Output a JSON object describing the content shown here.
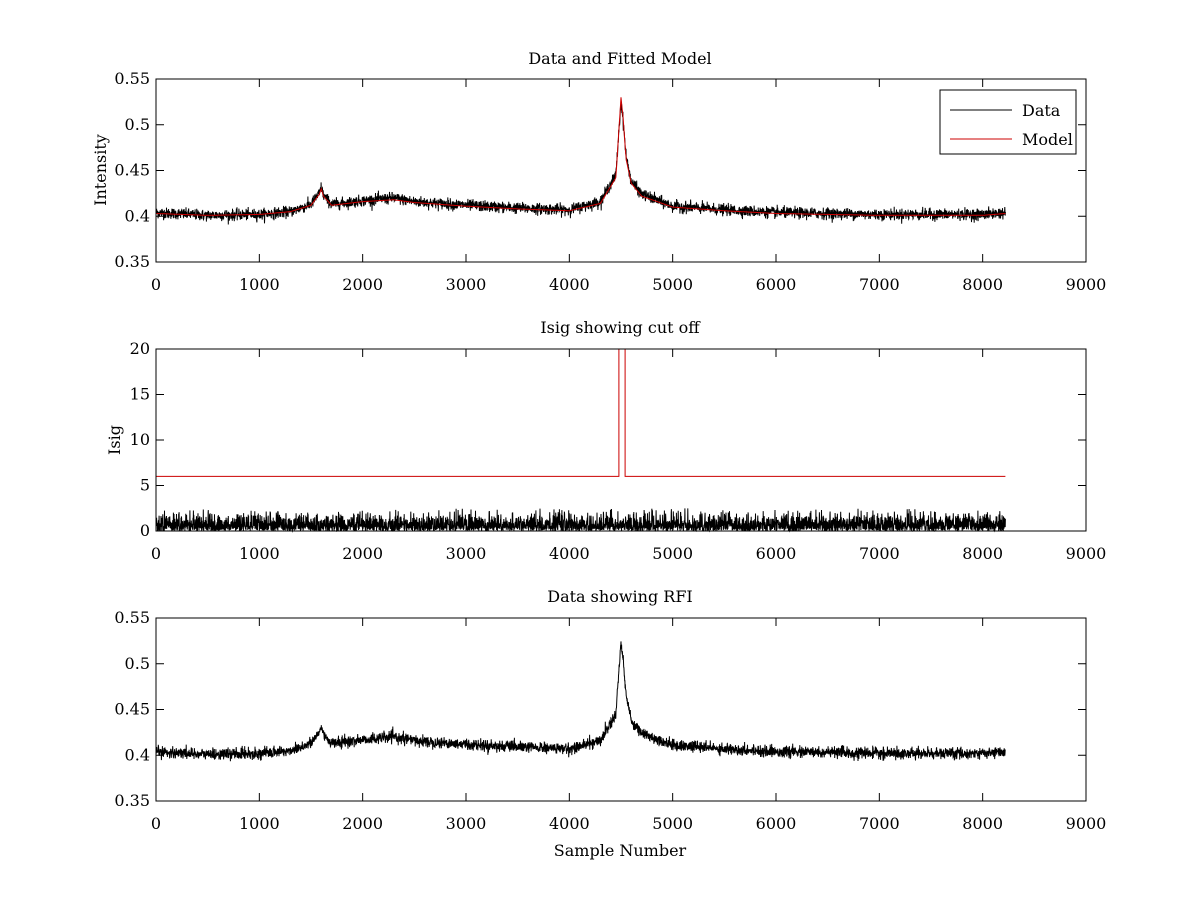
{
  "chart_data": [
    {
      "type": "line",
      "title": "Data and Fitted Model",
      "xlabel": "",
      "ylabel": "Intensity",
      "xlim": [
        0,
        9000
      ],
      "ylim": [
        0.35,
        0.55
      ],
      "xticks": [
        0,
        1000,
        2000,
        3000,
        4000,
        5000,
        6000,
        7000,
        8000,
        9000
      ],
      "yticks": [
        0.35,
        0.4,
        0.45,
        0.5,
        0.55
      ],
      "xtick_labels": [
        "0",
        "1000",
        "2000",
        "3000",
        "4000",
        "5000",
        "6000",
        "7000",
        "8000",
        "9000"
      ],
      "ytick_labels": [
        "0.35",
        "0.4",
        "0.45",
        "0.5",
        "0.55"
      ],
      "grid": false,
      "legend": {
        "placement": "top-right",
        "entries": [
          "Data",
          "Model"
        ]
      },
      "series": [
        {
          "name": "Data",
          "color": "#000000",
          "noise_amplitude": 0.006,
          "x": [
            0,
            500,
            1000,
            1300,
            1500,
            1580,
            1600,
            1620,
            1700,
            2000,
            2300,
            2500,
            3000,
            3500,
            4000,
            4300,
            4450,
            4500,
            4520,
            4550,
            4600,
            4700,
            5000,
            5500,
            6000,
            7000,
            8000,
            8220
          ],
          "values": [
            0.404,
            0.401,
            0.402,
            0.405,
            0.413,
            0.425,
            0.432,
            0.423,
            0.413,
            0.417,
            0.42,
            0.416,
            0.412,
            0.409,
            0.407,
            0.416,
            0.445,
            0.525,
            0.505,
            0.465,
            0.438,
            0.424,
            0.411,
            0.407,
            0.404,
            0.402,
            0.402,
            0.404
          ]
        },
        {
          "name": "Model",
          "color": "#cc0000",
          "x": [
            0,
            500,
            1000,
            1300,
            1500,
            1580,
            1600,
            1620,
            1700,
            2000,
            2300,
            2500,
            3000,
            3500,
            4000,
            4300,
            4450,
            4500,
            4520,
            4550,
            4600,
            4700,
            5000,
            5500,
            6000,
            7000,
            8000,
            8220
          ],
          "values": [
            0.403,
            0.401,
            0.402,
            0.405,
            0.412,
            0.424,
            0.43,
            0.422,
            0.412,
            0.416,
            0.418,
            0.415,
            0.411,
            0.408,
            0.406,
            0.414,
            0.442,
            0.53,
            0.508,
            0.462,
            0.436,
            0.422,
            0.41,
            0.406,
            0.403,
            0.401,
            0.401,
            0.403
          ]
        }
      ]
    },
    {
      "type": "line",
      "title": "Isig showing cut off",
      "xlabel": "",
      "ylabel": "Isig",
      "xlim": [
        0,
        9000
      ],
      "ylim": [
        0,
        20
      ],
      "xticks": [
        0,
        1000,
        2000,
        3000,
        4000,
        5000,
        6000,
        7000,
        8000,
        9000
      ],
      "yticks": [
        0,
        5,
        10,
        15,
        20
      ],
      "xtick_labels": [
        "0",
        "1000",
        "2000",
        "3000",
        "4000",
        "5000",
        "6000",
        "7000",
        "8000",
        "9000"
      ],
      "ytick_labels": [
        "0",
        "5",
        "10",
        "15",
        "20"
      ],
      "grid": false,
      "series": [
        {
          "name": "",
          "color": "#000000",
          "x_range": [
            0,
            8220
          ],
          "noise_max": 2.5
        },
        {
          "name": "",
          "color": "#cc0000",
          "x": [
            0,
            4480,
            4480,
            4500,
            4500,
            4540,
            4540,
            8220
          ],
          "values": [
            6,
            6,
            20,
            20,
            20,
            20,
            6,
            6
          ]
        }
      ]
    },
    {
      "type": "line",
      "title": "Data showing RFI",
      "xlabel": "Sample Number",
      "ylabel": "",
      "xlim": [
        0,
        9000
      ],
      "ylim": [
        0.35,
        0.55
      ],
      "xticks": [
        0,
        1000,
        2000,
        3000,
        4000,
        5000,
        6000,
        7000,
        8000,
        9000
      ],
      "yticks": [
        0.35,
        0.4,
        0.45,
        0.5,
        0.55
      ],
      "xtick_labels": [
        "0",
        "1000",
        "2000",
        "3000",
        "4000",
        "5000",
        "6000",
        "7000",
        "8000",
        "9000"
      ],
      "ytick_labels": [
        "0.35",
        "0.4",
        "0.45",
        "0.5",
        "0.55"
      ],
      "grid": false,
      "series": [
        {
          "name": "",
          "color": "#000000",
          "noise_amplitude": 0.006,
          "x": [
            0,
            500,
            1000,
            1300,
            1500,
            1580,
            1600,
            1620,
            1700,
            2000,
            2300,
            2500,
            3000,
            3500,
            4000,
            4300,
            4450,
            4500,
            4520,
            4550,
            4600,
            4700,
            5000,
            5500,
            6000,
            7000,
            8000,
            8220
          ],
          "values": [
            0.404,
            0.401,
            0.402,
            0.405,
            0.413,
            0.425,
            0.432,
            0.423,
            0.413,
            0.417,
            0.42,
            0.416,
            0.412,
            0.409,
            0.407,
            0.416,
            0.445,
            0.525,
            0.505,
            0.465,
            0.438,
            0.424,
            0.411,
            0.407,
            0.404,
            0.402,
            0.402,
            0.404
          ]
        }
      ]
    }
  ]
}
